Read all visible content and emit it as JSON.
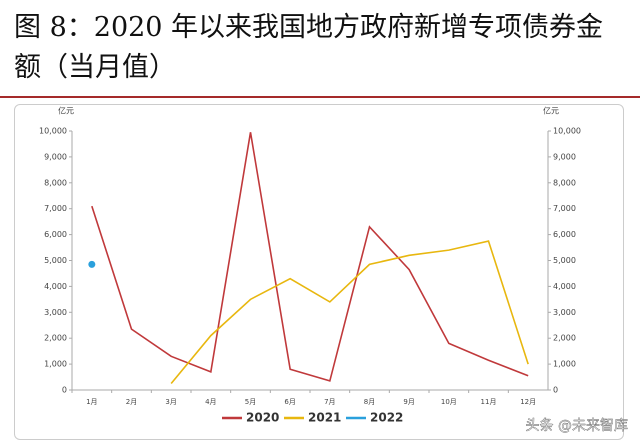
{
  "chart_data": {
    "type": "line",
    "title": "图 8：2020 年以来我国地方政府新增专项债券金额（当月值）",
    "y_label": "亿元",
    "y2_label": "亿元",
    "categories": [
      "1月",
      "2月",
      "3月",
      "4月",
      "5月",
      "6月",
      "7月",
      "8月",
      "9月",
      "10月",
      "11月",
      "12月"
    ],
    "series": [
      {
        "name": "2020",
        "color": "#c0393b",
        "values": [
          7100,
          2350,
          1300,
          700,
          9950,
          800,
          350,
          6300,
          4650,
          1800,
          1150,
          550
        ]
      },
      {
        "name": "2021",
        "color": "#e8b70f",
        "values": [
          null,
          null,
          250,
          2100,
          3500,
          4300,
          3400,
          4850,
          5200,
          5400,
          5750,
          1000
        ]
      },
      {
        "name": "2022",
        "color": "#2aa0dc",
        "values": [
          4850,
          null,
          null,
          null,
          null,
          null,
          null,
          null,
          null,
          null,
          null,
          null
        ]
      }
    ],
    "ylim": [
      0,
      10000
    ],
    "yticks": [
      0,
      {
        "value": 1000,
        "label": "1,000"
      },
      {
        "value": 2000,
        "label": "2,000"
      },
      {
        "value": 3000,
        "label": "3,000"
      },
      {
        "value": 4000,
        "label": "4,000"
      },
      {
        "value": 5000,
        "label": "5,000"
      },
      {
        "value": 6000,
        "label": "6,000"
      },
      {
        "value": 7000,
        "label": "7,000"
      },
      {
        "value": 8000,
        "label": "8,000"
      },
      {
        "value": 9000,
        "label": "9,000"
      },
      {
        "value": 10000,
        "label": "10,000"
      }
    ],
    "y2lim": [
      0,
      10000
    ],
    "y2ticks": [
      0,
      {
        "value": 1000,
        "label": "1,000"
      },
      {
        "value": 2000,
        "label": "2,000"
      },
      {
        "value": 3000,
        "label": "3,000"
      },
      {
        "value": 4000,
        "label": "4,000"
      },
      {
        "value": 5000,
        "label": "5,000"
      },
      {
        "value": 6000,
        "label": "6,000"
      },
      {
        "value": 7000,
        "label": "7,000"
      },
      {
        "value": 8000,
        "label": "8,000"
      },
      {
        "value": 9000,
        "label": "9,000"
      },
      {
        "value": 10000,
        "label": "10,000"
      }
    ],
    "grid": false,
    "legend": "bottom",
    "watermark": "头条 @未来智库"
  }
}
